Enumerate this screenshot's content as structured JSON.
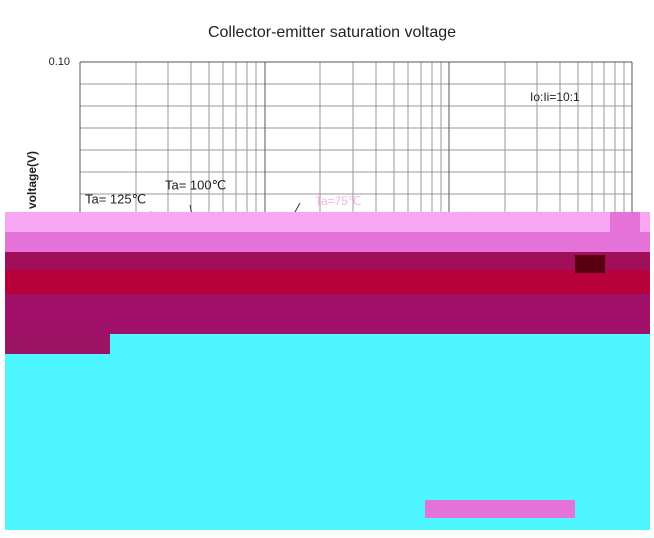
{
  "chart_data": {
    "type": "line",
    "title": "Collector-emitter saturation voltage",
    "ylabel": "voltage(V)",
    "annotations": [
      "Io:Ii=10:1",
      "Ta= 125℃",
      "Ta= 100℃",
      "Ta=75℃"
    ],
    "ylog": true,
    "ylim": [
      0.01,
      0.1
    ],
    "yticks": [
      {
        "value": 0.1,
        "label": "0.10"
      }
    ],
    "grid": true
  }
}
